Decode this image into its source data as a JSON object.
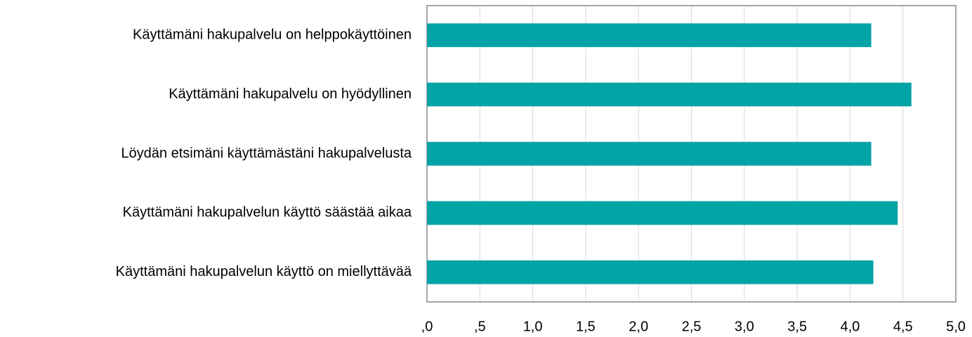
{
  "chart_data": {
    "type": "barh",
    "categories": [
      "Käyttämäni hakupalvelu on helppokäyttöinen",
      "Käyttämäni hakupalvelu on hyödyllinen",
      "Löydän etsimäni käyttämästäni hakupalvelusta",
      "Käyttämäni hakupalvelun käyttö säästää aikaa",
      "Käyttämäni hakupalvelun käyttö on miellyttävää"
    ],
    "values": [
      4.2,
      4.58,
      4.2,
      4.45,
      4.22
    ],
    "color": "#00a3a6",
    "xlim": [
      0,
      5
    ],
    "xticks": [
      {
        "value": 0,
        "label": ",0"
      },
      {
        "value": 0.5,
        "label": ",5"
      },
      {
        "value": 1,
        "label": "1,0"
      },
      {
        "value": 1.5,
        "label": "1,5"
      },
      {
        "value": 2,
        "label": "2,0"
      },
      {
        "value": 2.5,
        "label": "2,5"
      },
      {
        "value": 3,
        "label": "3,0"
      },
      {
        "value": 3.5,
        "label": "3,5"
      },
      {
        "value": 4,
        "label": "4,0"
      },
      {
        "value": 4.5,
        "label": "4,5"
      },
      {
        "value": 5,
        "label": "5,0"
      }
    ],
    "grid": true
  }
}
